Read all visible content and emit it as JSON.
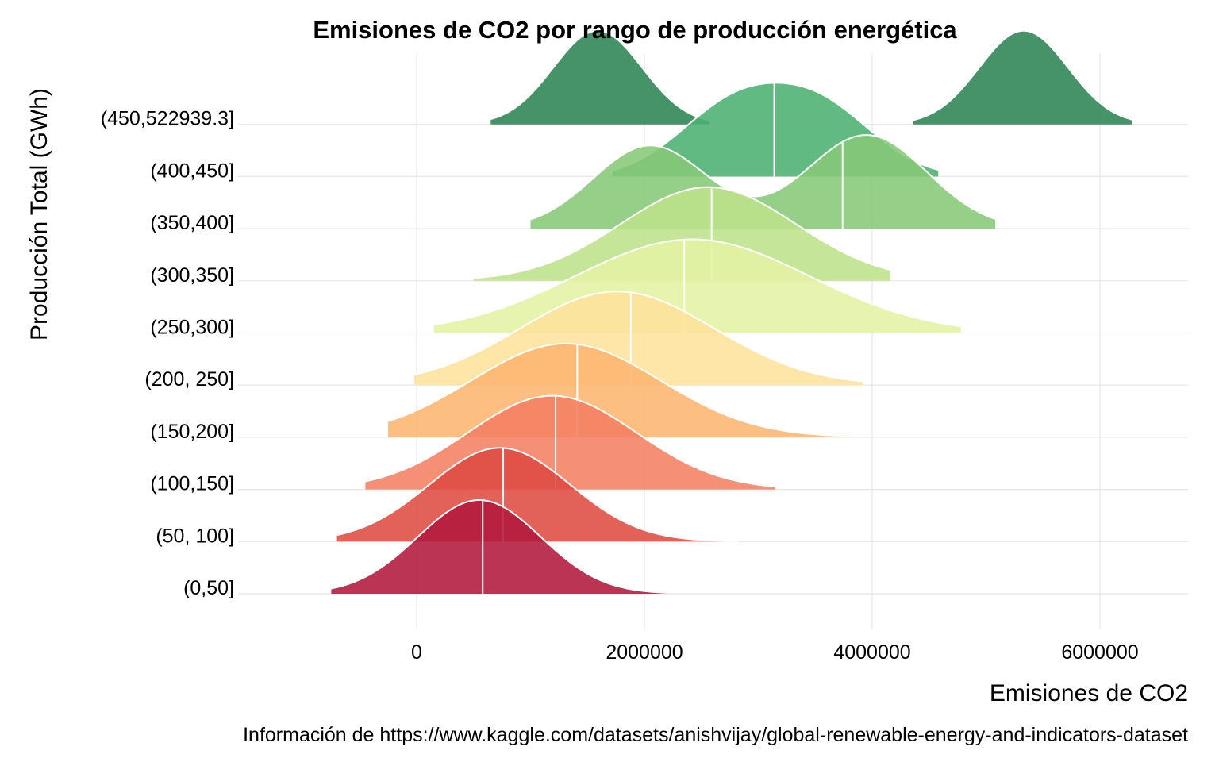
{
  "chart_data": {
    "type": "ridgeline",
    "title": "Emisiones de CO2 por rango de producción energética",
    "xlabel": "Emisiones de CO2",
    "ylabel": "Producción Total (GWh)",
    "caption": "Información de https://www.kaggle.com/datasets/anishvijay/global-renewable-energy-and-indicators-dataset",
    "xlim": [
      -1400000,
      6800000
    ],
    "x_ticks": [
      0,
      2000000,
      4000000,
      6000000
    ],
    "x_tick_labels": [
      "0",
      "2000000",
      "4000000",
      "6000000"
    ],
    "grid": true,
    "categories": [
      "(0,50]",
      "(50, 100]",
      "(100,150]",
      "(150,200]",
      "(200, 250]",
      "(250,300]",
      "(300,350]",
      "(350,400]",
      "(400,450]",
      "(450,522939.3]"
    ],
    "series": [
      {
        "category": "(0,50]",
        "color": "#b2183b",
        "median": 580000,
        "components": [
          {
            "mean": 550000,
            "sd": 540000,
            "weight": 1
          }
        ],
        "range": [
          -750000,
          2220000
        ]
      },
      {
        "category": "(50, 100]",
        "color": "#de4b42",
        "median": 760000,
        "components": [
          {
            "mean": 730000,
            "sd": 620000,
            "weight": 1
          }
        ],
        "range": [
          -700000,
          2830000
        ]
      },
      {
        "category": "(100,150]",
        "color": "#f47f62",
        "median": 1220000,
        "components": [
          {
            "mean": 1190000,
            "sd": 740000,
            "weight": 1
          }
        ],
        "range": [
          -450000,
          3150000
        ]
      },
      {
        "category": "(150,200]",
        "color": "#fdb56f",
        "median": 1410000,
        "components": [
          {
            "mean": 1310000,
            "sd": 830000,
            "weight": 1
          }
        ],
        "range": [
          -250000,
          3830000
        ]
      },
      {
        "category": "(200, 250]",
        "color": "#fee39c",
        "median": 1880000,
        "components": [
          {
            "mean": 1760000,
            "sd": 850000,
            "weight": 1
          }
        ],
        "range": [
          -20000,
          3920000
        ]
      },
      {
        "category": "(250,300]",
        "color": "#e4f3a4",
        "median": 2350000,
        "components": [
          {
            "mean": 2420000,
            "sd": 1030000,
            "weight": 1
          }
        ],
        "range": [
          150000,
          4780000
        ]
      },
      {
        "category": "(300,350]",
        "color": "#bde18a",
        "median": 2590000,
        "components": [
          {
            "mean": 2560000,
            "sd": 770000,
            "weight": 1
          }
        ],
        "range": [
          500000,
          4160000
        ]
      },
      {
        "category": "(350,400]",
        "color": "#86c878",
        "median": 3740000,
        "components": [
          {
            "mean": 2050000,
            "sd": 500000,
            "weight": 0.47
          },
          {
            "mean": 3950000,
            "sd": 530000,
            "weight": 0.53
          }
        ],
        "range": [
          1000000,
          5080000
        ]
      },
      {
        "category": "(400,450]",
        "color": "#4cb172",
        "median": 3140000,
        "components": [
          {
            "mean": 2760000,
            "sd": 480000,
            "weight": 0.5
          },
          {
            "mean": 3550000,
            "sd": 480000,
            "weight": 0.5
          }
        ],
        "range": [
          1720000,
          4580000
        ]
      },
      {
        "category": "(450,522939.3]",
        "color": "#2c8454",
        "median": null,
        "components": [
          {
            "mean": 1590000,
            "sd": 390000,
            "weight": 0.5
          },
          {
            "mean": 5330000,
            "sd": 390000,
            "weight": 0.5
          }
        ],
        "range": [
          650000,
          6280000
        ],
        "gap": [
          2580000,
          4340000
        ]
      }
    ]
  }
}
